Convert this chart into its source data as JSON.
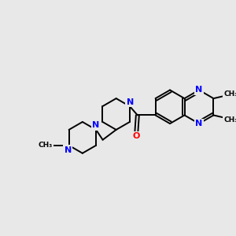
{
  "bg_color": "#e8e8e8",
  "bond_color": "#000000",
  "N_color": "#0000ff",
  "O_color": "#ff0000",
  "lw": 1.4,
  "figsize": [
    3.0,
    3.0
  ],
  "dpi": 100,
  "xlim": [
    0,
    10
  ],
  "ylim": [
    0,
    10
  ]
}
